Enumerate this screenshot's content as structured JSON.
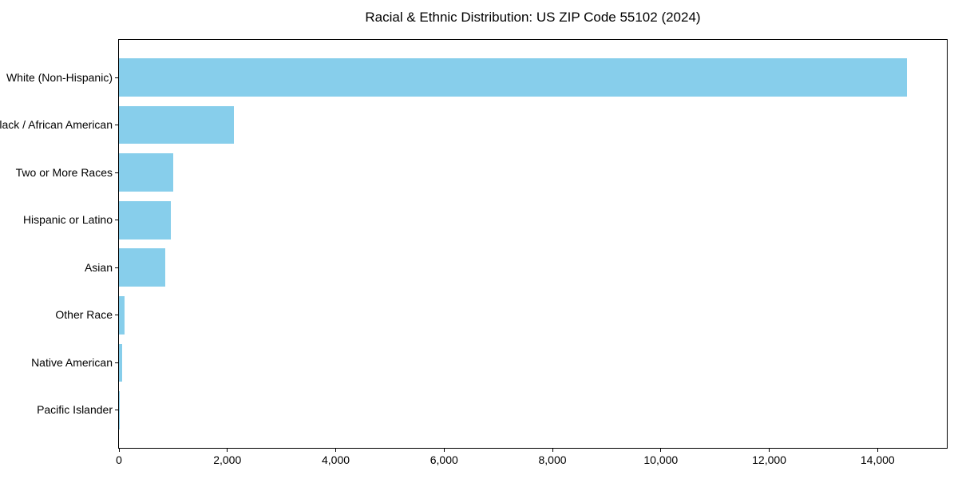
{
  "chart_data": {
    "type": "bar",
    "orientation": "horizontal",
    "title": "Racial & Ethnic Distribution: US ZIP Code 55102 (2024)",
    "categories": [
      "White (Non-Hispanic)",
      "Black / African American",
      "Two or More Races",
      "Hispanic or Latino",
      "Asian",
      "Other Race",
      "Native American",
      "Pacific Islander"
    ],
    "values": [
      14540,
      2120,
      1000,
      955,
      860,
      100,
      55,
      10
    ],
    "xlabel": "",
    "ylabel": "",
    "xlim": [
      0,
      15277
    ],
    "x_ticks": [
      0,
      2000,
      4000,
      6000,
      8000,
      10000,
      12000,
      14000
    ],
    "x_tick_labels": [
      "0",
      "2,000",
      "4,000",
      "6,000",
      "8,000",
      "10,000",
      "12,000",
      "14,000"
    ],
    "bar_color": "#87CEEB",
    "spine_color": "#000000",
    "text_color": "#000000",
    "background_color": "#FFFFFF",
    "grid": false,
    "legend": "none",
    "bar_relative_height": 0.8
  }
}
